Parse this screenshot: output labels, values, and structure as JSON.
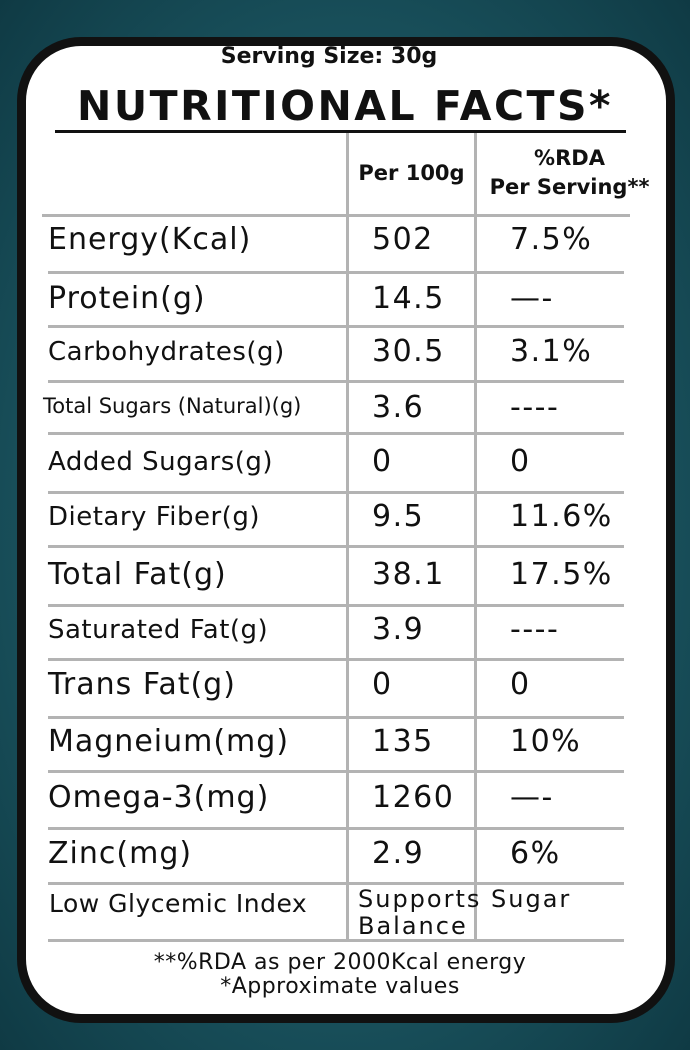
{
  "label": {
    "serving_size": "Serving Size: 30g",
    "title": "NUTRITIONAL FACTS*",
    "header": {
      "col1": "Per 100g",
      "col2_line1": "%RDA",
      "col2_line2": "Per Serving**"
    },
    "rows": [
      {
        "name": "Energy(Kcal)",
        "per100g": "502",
        "rda": "7.5%"
      },
      {
        "name": "Protein(g)",
        "per100g": "14.5",
        "rda": "—-"
      },
      {
        "name": "Carbohydrates(g)",
        "per100g": "30.5",
        "rda": "3.1%"
      },
      {
        "name": "Total Sugars (Natural)(g)",
        "per100g": "3.6",
        "rda": "----"
      },
      {
        "name": "Added Sugars(g)",
        "per100g": "0",
        "rda": "0"
      },
      {
        "name": "Dietary Fiber(g)",
        "per100g": "9.5",
        "rda": "11.6%"
      },
      {
        "name": "Total Fat(g)",
        "per100g": "38.1",
        "rda": "17.5%"
      },
      {
        "name": "Saturated Fat(g)",
        "per100g": "3.9",
        "rda": "----"
      },
      {
        "name": "Trans Fat(g)",
        "per100g": "0",
        "rda": "0"
      },
      {
        "name": "Magneium(mg)",
        "per100g": "135",
        "rda": "10%"
      },
      {
        "name": "Omega-3(mg)",
        "per100g": "1260",
        "rda": "—-"
      },
      {
        "name": "Zinc(mg)",
        "per100g": "2.9",
        "rda": "6%"
      }
    ],
    "glycemic": {
      "name": "Low Glycemic Index",
      "value": "Supports Sugar Balance"
    },
    "footnote1": "**%RDA as per 2000Kcal energy",
    "footnote2": "*Approximate values"
  }
}
